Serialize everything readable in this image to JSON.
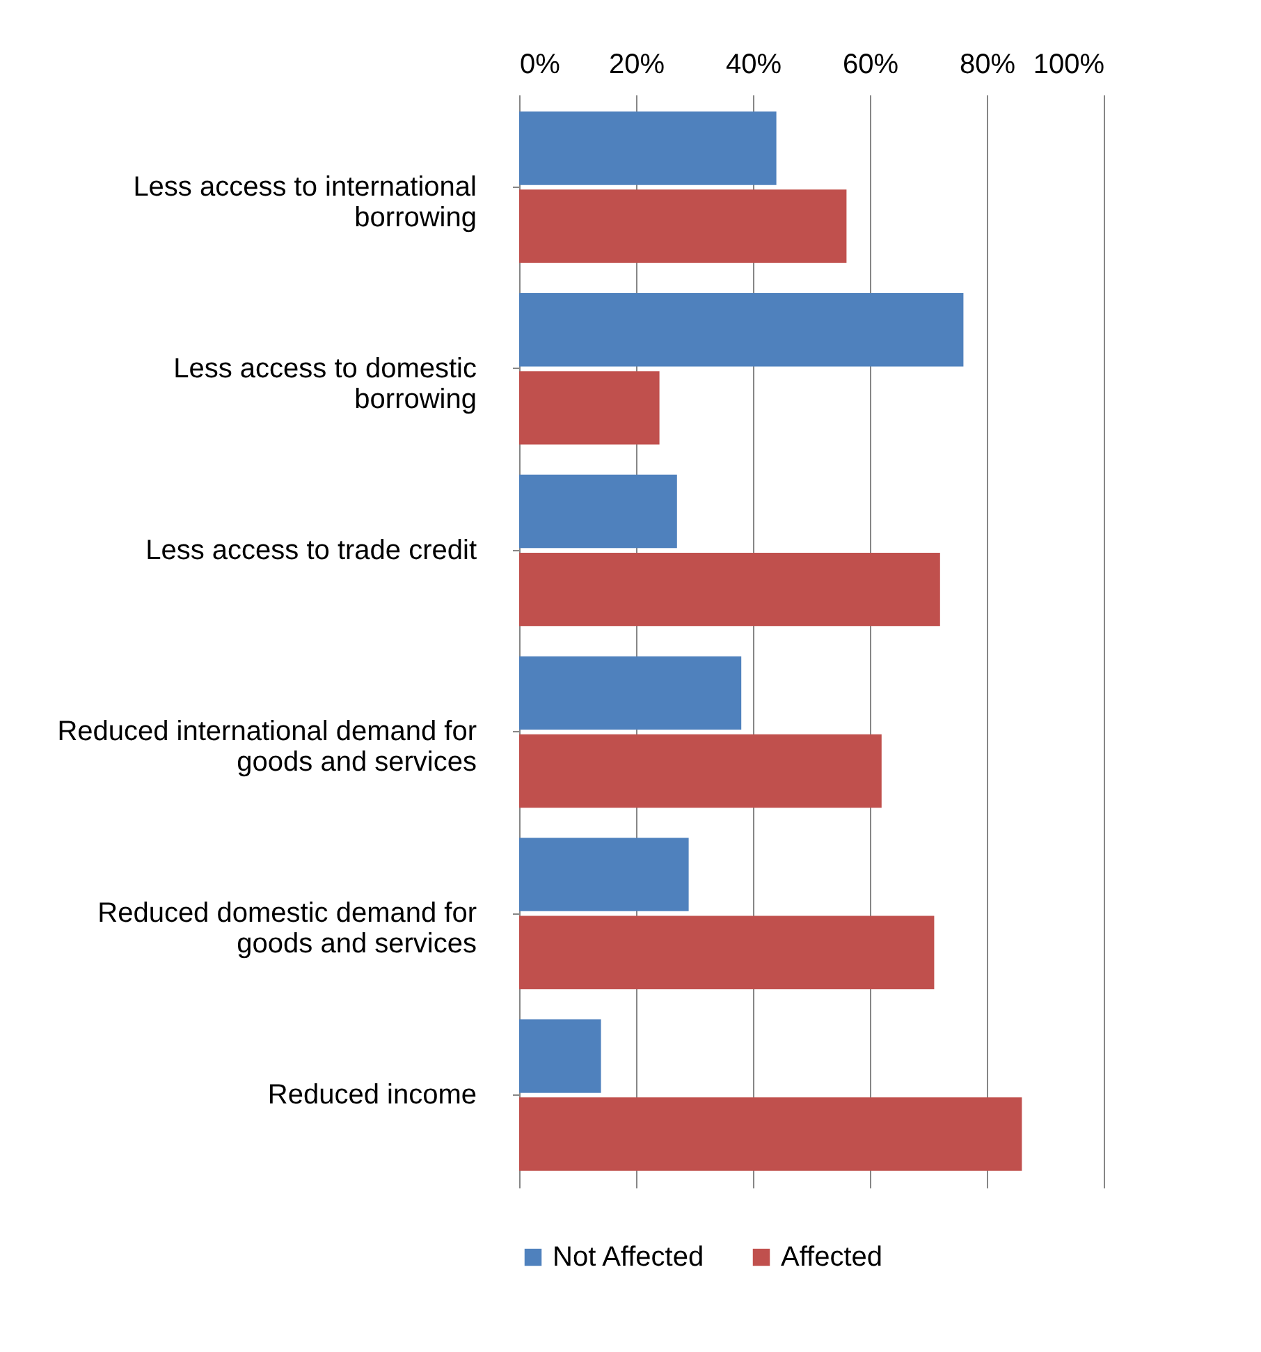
{
  "chart_data": {
    "type": "bar",
    "orientation": "horizontal",
    "categories": [
      "Less access to international borrowing",
      "Less access to domestic borrowing",
      "Less access to trade credit",
      "Reduced international demand for goods and services",
      "Reduced domestic demand for goods and services",
      "Reduced income"
    ],
    "series": [
      {
        "name": "Not Affected",
        "color": "#4f81bd",
        "values": [
          44,
          76,
          27,
          38,
          29,
          14
        ]
      },
      {
        "name": "Affected",
        "color": "#c0504d",
        "values": [
          56,
          24,
          72,
          62,
          71,
          86
        ]
      }
    ],
    "xlim": [
      0,
      100
    ],
    "xticks": [
      {
        "value": 0,
        "label": "0%"
      },
      {
        "value": 20,
        "label": "20%"
      },
      {
        "value": 40,
        "label": "40%"
      },
      {
        "value": 60,
        "label": "60%"
      },
      {
        "value": 80,
        "label": "80%"
      },
      {
        "value": 100,
        "label": "100%"
      }
    ],
    "grid": "x",
    "legend": "bottom"
  }
}
